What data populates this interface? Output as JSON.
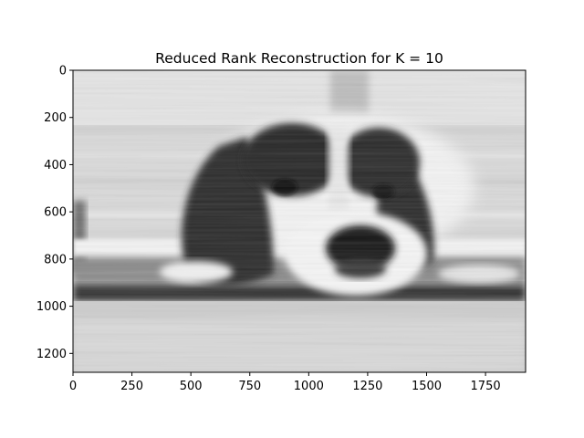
{
  "chart_data": {
    "type": "heatmap",
    "title": "Reduced Rank Reconstruction for K = 10",
    "xlabel": "",
    "ylabel": "",
    "colormap": "gray",
    "image_description_source": "grayscale image matrix (dog resting head)",
    "xlim": [
      0,
      1920
    ],
    "ylim": [
      1280,
      0
    ],
    "y_axis_inverted": true,
    "x_ticks": [
      0,
      250,
      500,
      750,
      1000,
      1250,
      1500,
      1750
    ],
    "x_tick_labels": [
      "0",
      "250",
      "500",
      "750",
      "1000",
      "1250",
      "1500",
      "1750"
    ],
    "y_ticks": [
      0,
      200,
      400,
      600,
      800,
      1000,
      1200
    ],
    "y_tick_labels": [
      "0",
      "200",
      "400",
      "600",
      "800",
      "1000",
      "1200"
    ],
    "grid": false,
    "legend": "none"
  }
}
